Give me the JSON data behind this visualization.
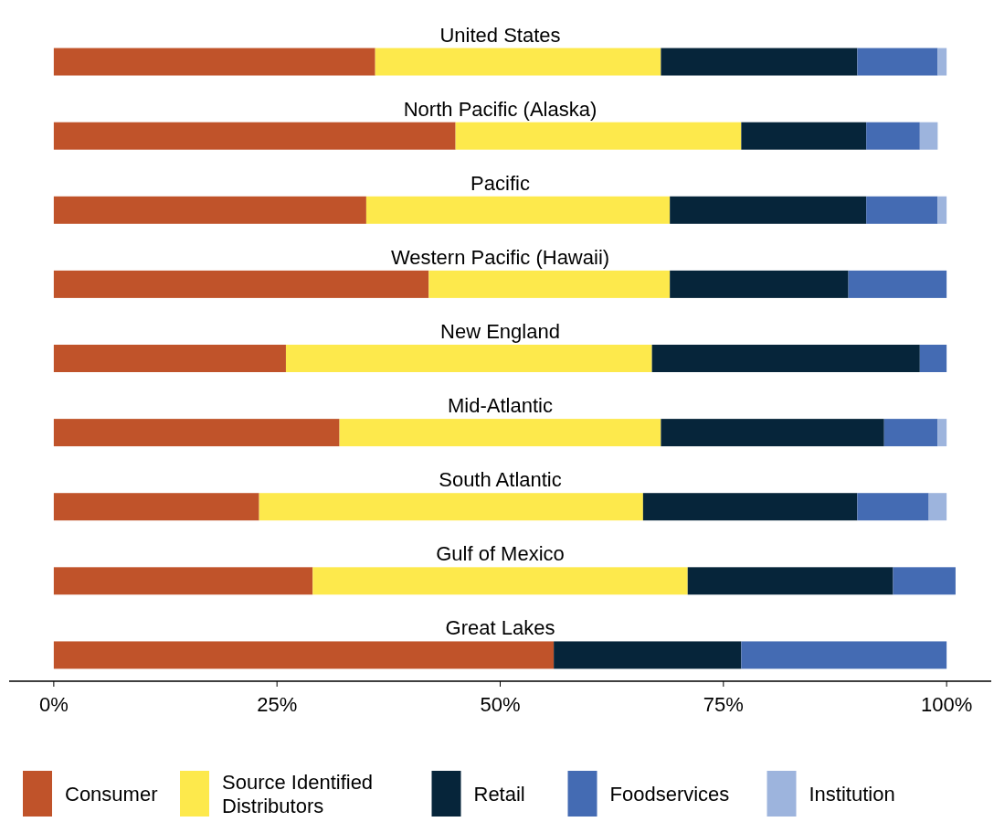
{
  "chart_data": {
    "type": "bar",
    "orientation": "horizontal",
    "stacked": true,
    "categories": [
      "United States",
      "North Pacific (Alaska)",
      "Pacific",
      "Western Pacific (Hawaii)",
      "New England",
      "Mid-Atlantic",
      "South Atlantic",
      "Gulf of Mexico",
      "Great Lakes"
    ],
    "series": [
      {
        "name": "Consumer",
        "color": "#c0532a",
        "values": [
          36,
          45,
          35,
          42,
          26,
          32,
          23,
          29,
          56
        ]
      },
      {
        "name": "Source Identified Distributors",
        "color": "#fde94c",
        "values": [
          32,
          32,
          34,
          27,
          41,
          36,
          43,
          42,
          0
        ]
      },
      {
        "name": "Retail",
        "color": "#06253a",
        "values": [
          22,
          14,
          22,
          20,
          30,
          25,
          24,
          23,
          21
        ]
      },
      {
        "name": "Foodservices",
        "color": "#446bb3",
        "values": [
          9,
          6,
          8,
          11,
          3,
          6,
          8,
          7,
          23
        ]
      },
      {
        "name": "Institution",
        "color": "#9db4dd",
        "values": [
          1,
          2,
          1,
          0,
          0,
          1,
          2,
          0,
          0
        ]
      }
    ],
    "xlim": [
      -5,
      105
    ],
    "xticks": [
      {
        "value": 0,
        "label": "0%"
      },
      {
        "value": 25,
        "label": "25%"
      },
      {
        "value": 50,
        "label": "50%"
      },
      {
        "value": 75,
        "label": "75%"
      },
      {
        "value": 100,
        "label": "100%"
      }
    ],
    "grid": false,
    "legend": "bottom"
  }
}
